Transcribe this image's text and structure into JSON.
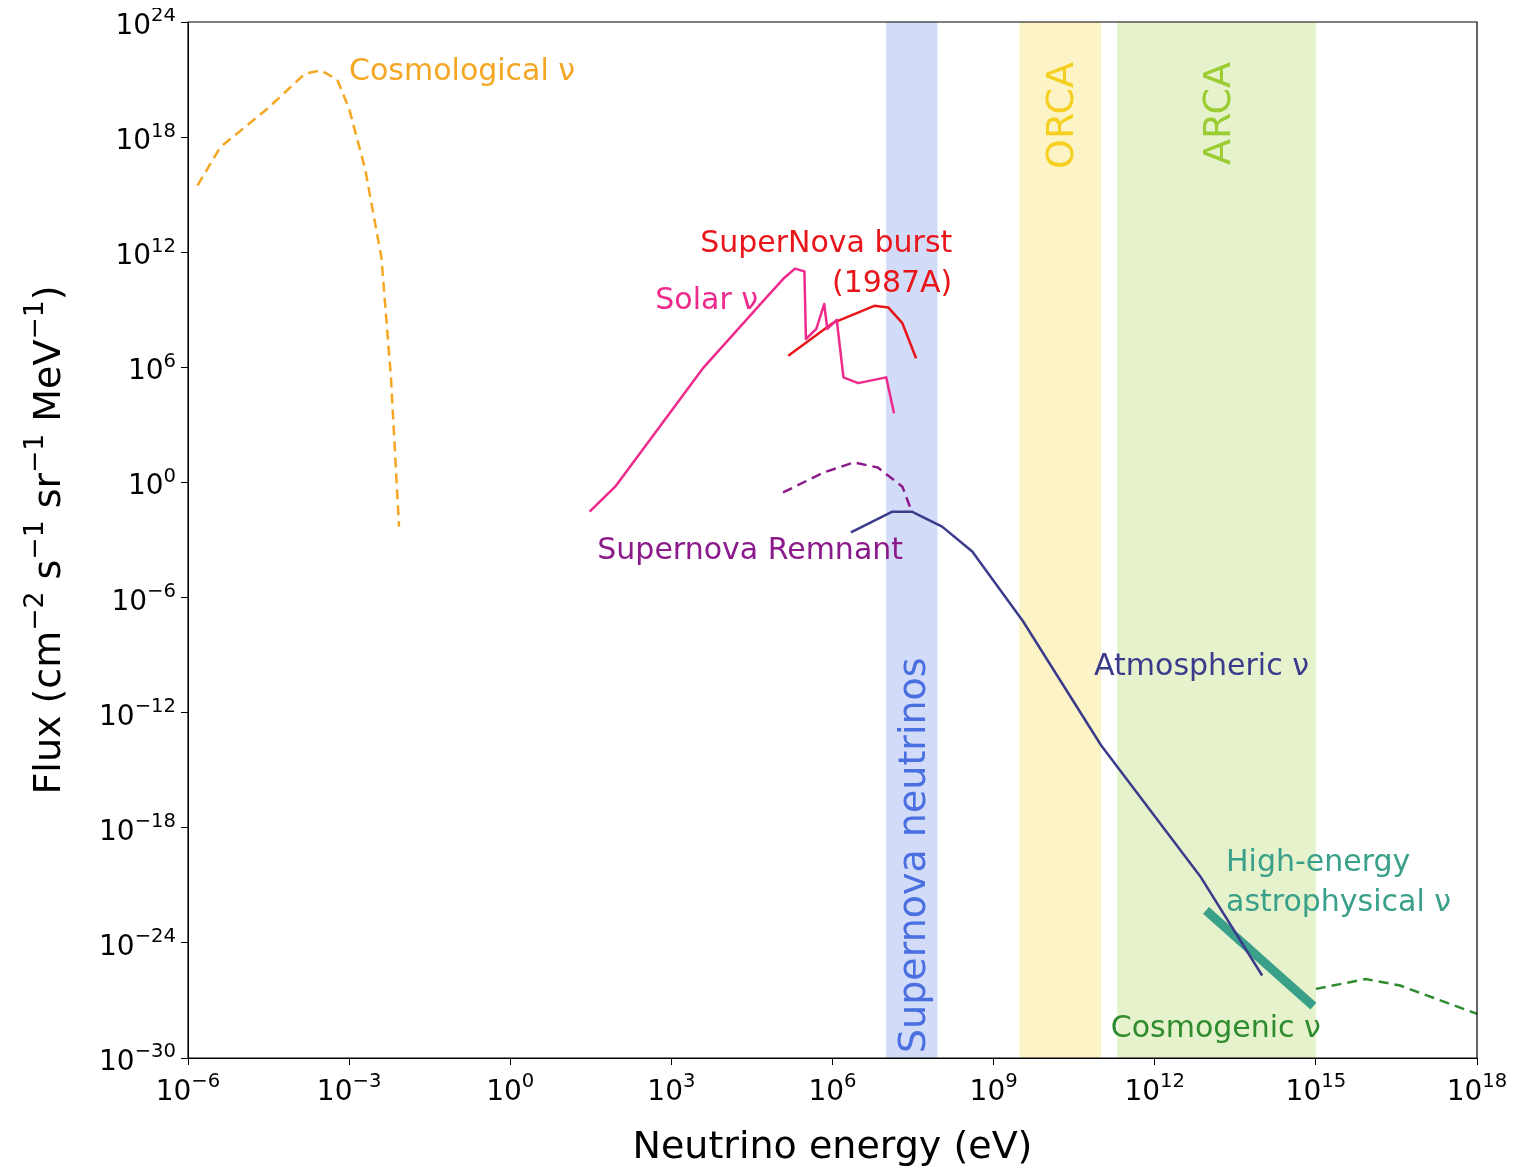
{
  "chart_data": {
    "type": "line",
    "xlabel": "Neutrino energy (eV)",
    "ylabel": "Flux (cm$^{−2}$ s$^{−1}$ sr$^{−1}$ MeV$^{−1}$)",
    "log": "xy",
    "grid": false,
    "legend": false,
    "marker": "none",
    "xlim": [
      1e-06,
      1e+18
    ],
    "ylim": [
      1e-30,
      1e+24
    ],
    "xticks": [
      {
        "value": 1e-06,
        "label": "10$^{−6}$"
      },
      {
        "value": 0.001,
        "label": "10$^{−3}$"
      },
      {
        "value": 1,
        "label": "10$^{0}$"
      },
      {
        "value": 1000.0,
        "label": "10$^{3}$"
      },
      {
        "value": 1000000.0,
        "label": "10$^{6}$"
      },
      {
        "value": 1000000000.0,
        "label": "10$^{9}$"
      },
      {
        "value": 1000000000000.0,
        "label": "10$^{12}$"
      },
      {
        "value": 1000000000000000.0,
        "label": "10$^{15}$"
      },
      {
        "value": 1e+18,
        "label": "10$^{18}$"
      }
    ],
    "yticks": [
      {
        "value": 1e-30,
        "label": "10$^{−30}$"
      },
      {
        "value": 1e-24,
        "label": "10$^{−24}$"
      },
      {
        "value": 1e-18,
        "label": "10$^{−18}$"
      },
      {
        "value": 1e-12,
        "label": "10$^{−12}$"
      },
      {
        "value": 1e-06,
        "label": "10$^{−6}$"
      },
      {
        "value": 1,
        "label": "10$^{0}$"
      },
      {
        "value": 1000000.0,
        "label": "10$^{6}$"
      },
      {
        "value": 1000000000000.0,
        "label": "10$^{12}$"
      },
      {
        "value": 1e+18,
        "label": "10$^{18}$"
      },
      {
        "value": 1e+24,
        "label": "10$^{24}$"
      }
    ],
    "bands": [
      {
        "axis": "x",
        "from": 10000000.0,
        "to": 90000000.0,
        "label": "Supernova neutrinos",
        "color": "#4a6fe0"
      },
      {
        "axis": "x",
        "from": 3000000000.0,
        "to": 100000000000.0,
        "label": "ORCA",
        "color": "#f5d020"
      },
      {
        "axis": "x",
        "from": 200000000000.0,
        "to": 1000000000000000.0,
        "label": "ARCA",
        "color": "#9acd32"
      }
    ],
    "series": [
      {
        "name": "Cosmological ν",
        "color": "#f5a623",
        "line_style": "dashed",
        "x": [
          1.5e-06,
          4e-06,
          3e-05,
          0.00015,
          0.0003,
          0.0006,
          0.001,
          0.002,
          0.004,
          0.006,
          0.0085
        ],
        "values": [
          3000000000000000.0,
          3e+17,
          3e+19,
          2e+21,
          3e+21,
          1e+21,
          3e+19,
          2e+16,
          500000000000.0,
          300000.0,
          0.005
        ]
      },
      {
        "name": "Solar ν",
        "color": "#ee2a8c",
        "line_style": "solid",
        "x": [
          30.0,
          90.0,
          4000.0,
          120000.0,
          200000.0,
          300000.0,
          320000.0,
          500000.0,
          700000.0,
          800000.0,
          1200000.0,
          1600000.0,
          3000000.0,
          10000000.0,
          14000000.0
        ],
        "values": [
          0.03,
          0.6,
          1000000.0,
          40000000000.0,
          140000000000.0,
          100000000000.0,
          30000000.0,
          100000000.0,
          2000000000.0,
          100000000.0,
          300000000.0,
          300000.0,
          150000.0,
          300000.0,
          4000.0
        ]
      },
      {
        "name": "SuperNova burst (1987A)",
        "color": "#e8161b",
        "line_style": "solid",
        "x": [
          150000.0,
          1000000.0,
          6000000.0,
          11000000.0,
          20000000.0,
          36000000.0
        ],
        "values": [
          4000000.0,
          200000000.0,
          1600000000.0,
          1300000000.0,
          200000000.0,
          3000000.0
        ]
      },
      {
        "name": "Supernova Remnant",
        "color": "#8b1a8b",
        "line_style": "dashed",
        "x": [
          120000.0,
          700000.0,
          2500000.0,
          7000000.0,
          20000000.0,
          30000000.0
        ],
        "values": [
          0.3,
          3.4,
          11,
          6,
          0.6,
          0.03
        ]
      },
      {
        "name": "Atmospheric ν",
        "color": "#3b3b8b",
        "line_style": "solid",
        "x": [
          2200000.0,
          13000000.0,
          30000000.0,
          110000000.0,
          400000000.0,
          3500000000.0,
          100000000000.0,
          7000000000000.0,
          100000000000000.0
        ],
        "values": [
          0.0025,
          0.03,
          0.03,
          0.005,
          0.00025,
          6e-08,
          2e-14,
          3e-21,
          2e-26
        ]
      },
      {
        "name": "High-energy astrophysical ν",
        "color": "#3aa08a",
        "line_style": "solid",
        "x": [
          9000000000000.0,
          900000000000000.0
        ],
        "values": [
          5e-23,
          5e-28
        ]
      },
      {
        "name": "Cosmogenic ν",
        "color": "#2e8b2e",
        "line_style": "dashed",
        "x": [
          1000000000000000.0,
          8500000000000000.0,
          3.7e+16,
          1e+18
        ],
        "values": [
          4e-27,
          1.3e-26,
          6e-27,
          2e-28
        ]
      }
    ]
  }
}
